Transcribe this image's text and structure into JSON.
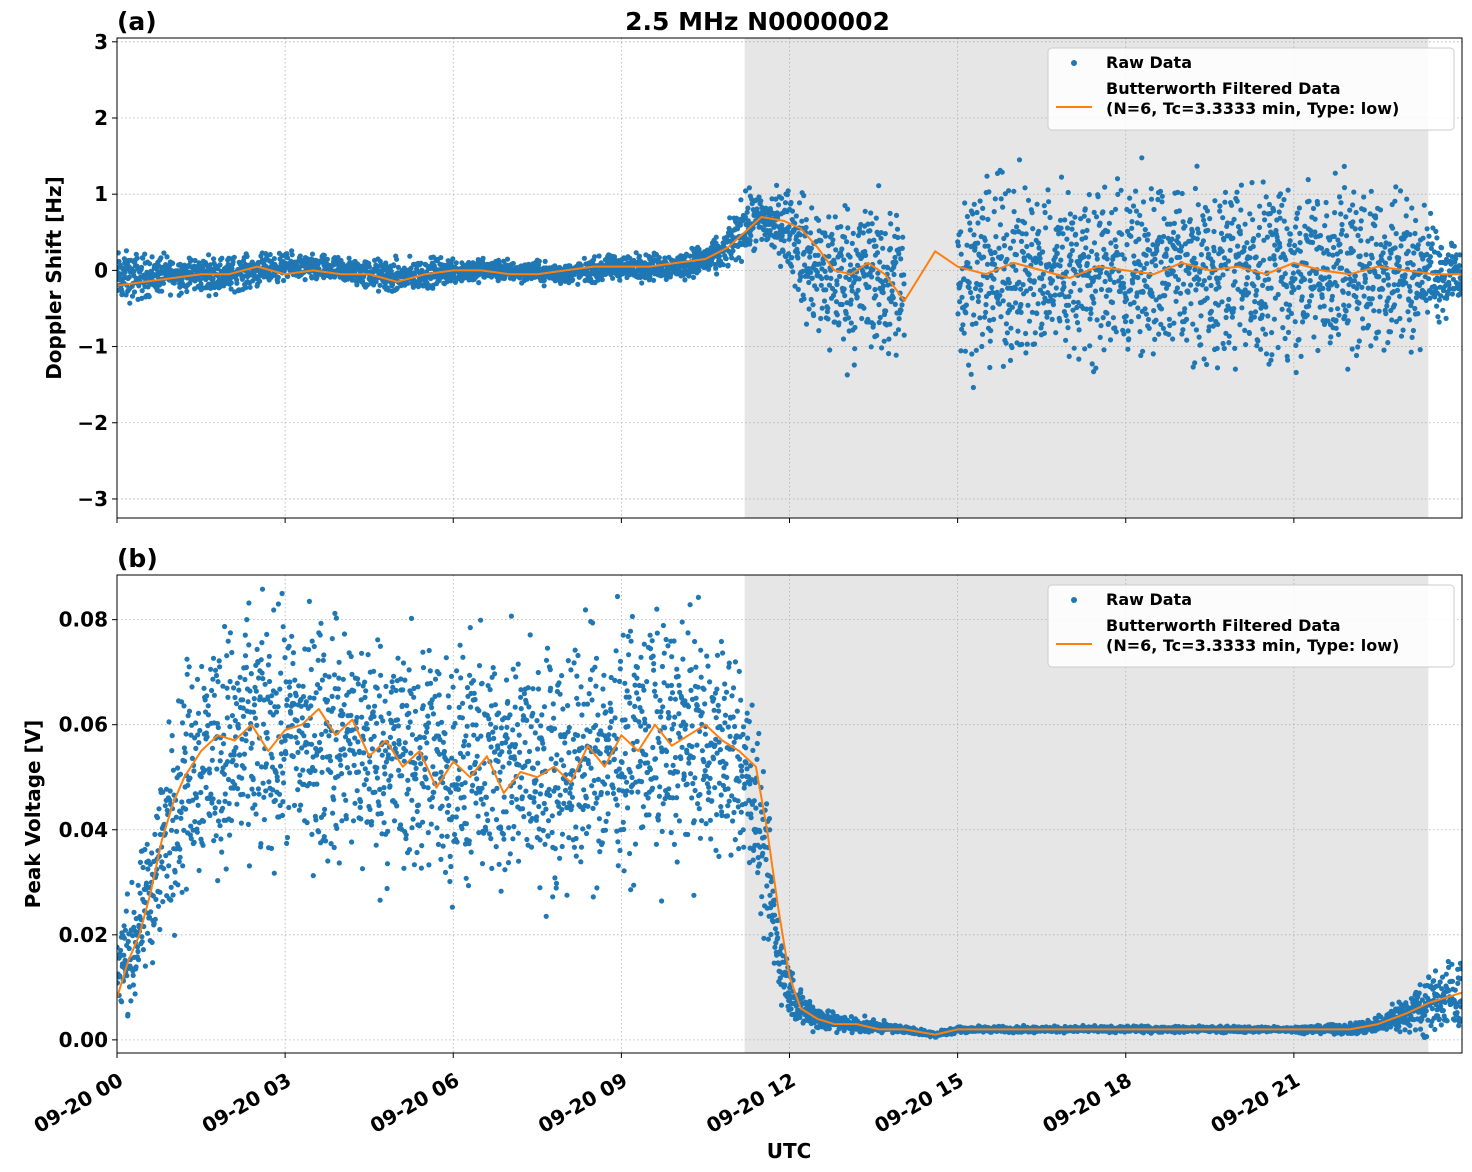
{
  "chart_data": [
    {
      "type": "scatter",
      "panel_label": "(a)",
      "title": "2.5 MHz N0000002",
      "xlabel": "",
      "ylabel": "Doppler Shift [Hz]",
      "xlim": [
        0,
        24
      ],
      "ylim": [
        -3.25,
        3.05
      ],
      "yticks": [
        -3,
        -2,
        -1,
        0,
        1,
        2,
        3
      ],
      "ytick_labels": [
        "−3",
        "−2",
        "−1",
        "0",
        "1",
        "2",
        "3"
      ],
      "xticks": [
        0,
        3,
        6,
        9,
        12,
        15,
        18,
        21
      ],
      "xtick_labels": [],
      "grid": true,
      "shaded_region": [
        11.2,
        23.4
      ],
      "legend_position": "top-right",
      "series": [
        {
          "name": "Raw Data",
          "kind": "points",
          "color": "#1f77b4",
          "band_x": [
            0,
            1,
            2,
            3,
            4,
            5,
            6,
            7,
            8,
            9,
            10,
            10.8,
            11.2,
            11.6,
            12,
            12.4,
            13,
            13.5,
            14.05,
            14.6,
            15,
            16,
            17,
            18,
            19,
            20,
            21,
            22,
            23,
            23.4,
            24
          ],
          "band_center": [
            -0.1,
            -0.05,
            -0.05,
            0.05,
            0.0,
            -0.1,
            0.0,
            0.0,
            -0.05,
            0.05,
            0.05,
            0.2,
            0.6,
            0.65,
            0.55,
            0.0,
            -0.1,
            -0.05,
            -0.3,
            null,
            0.0,
            0.0,
            0.0,
            0.0,
            0.0,
            0.0,
            0.0,
            0.0,
            0.0,
            0.0,
            -0.05
          ],
          "band_spread": [
            0.3,
            0.2,
            0.2,
            0.15,
            0.15,
            0.2,
            0.15,
            0.12,
            0.12,
            0.15,
            0.15,
            0.2,
            0.35,
            0.35,
            0.45,
            0.8,
            0.9,
            0.9,
            0.9,
            null,
            1.0,
            1.0,
            1.0,
            1.0,
            1.0,
            1.0,
            1.0,
            1.0,
            0.9,
            0.6,
            0.4
          ]
        },
        {
          "name": "Butterworth Filtered Data\n(N=6, Tc=3.3333 min, Type: low)",
          "kind": "line",
          "color": "#ff7f0e",
          "x": [
            0,
            0.5,
            1,
            1.5,
            2,
            2.5,
            3,
            3.5,
            4,
            4.5,
            5,
            5.5,
            6,
            6.5,
            7,
            7.5,
            8,
            8.5,
            9,
            9.5,
            10,
            10.5,
            10.9,
            11.2,
            11.5,
            11.9,
            12.2,
            12.5,
            12.8,
            13.1,
            13.4,
            13.7,
            14.05,
            14.6,
            15,
            15.5,
            16,
            16.5,
            17,
            17.5,
            18,
            18.5,
            19,
            19.5,
            20,
            20.5,
            21,
            21.5,
            22,
            22.5,
            23,
            23.5,
            24
          ],
          "y": [
            -0.2,
            -0.15,
            -0.1,
            -0.05,
            -0.05,
            0.05,
            -0.05,
            0.0,
            -0.05,
            -0.05,
            -0.15,
            -0.05,
            0.0,
            0.0,
            -0.05,
            -0.05,
            0.0,
            0.05,
            0.05,
            0.05,
            0.1,
            0.15,
            0.3,
            0.5,
            0.7,
            0.65,
            0.55,
            0.3,
            0.0,
            -0.05,
            0.1,
            -0.05,
            -0.4,
            0.25,
            0.05,
            -0.05,
            0.1,
            0.0,
            -0.1,
            0.05,
            0.0,
            -0.05,
            0.1,
            0.0,
            0.05,
            -0.05,
            0.1,
            0.0,
            -0.05,
            0.05,
            0.0,
            -0.05,
            -0.05
          ]
        }
      ]
    },
    {
      "type": "scatter",
      "panel_label": "(b)",
      "title": "",
      "xlabel": "UTC",
      "ylabel": "Peak Voltage [V]",
      "xlim": [
        0,
        24
      ],
      "ylim": [
        -0.0025,
        0.0885
      ],
      "yticks": [
        0.0,
        0.02,
        0.04,
        0.06,
        0.08
      ],
      "ytick_labels": [
        "0.00",
        "0.02",
        "0.04",
        "0.06",
        "0.08"
      ],
      "xticks": [
        0,
        3,
        6,
        9,
        12,
        15,
        18,
        21
      ],
      "xtick_labels": [
        "09-20 00",
        "09-20 03",
        "09-20 06",
        "09-20 09",
        "09-20 12",
        "09-20 15",
        "09-20 18",
        "09-20 21"
      ],
      "grid": true,
      "shaded_region": [
        11.2,
        23.4
      ],
      "legend_position": "top-right",
      "series": [
        {
          "name": "Raw Data",
          "kind": "points",
          "color": "#1f77b4",
          "band_x": [
            0,
            0.3,
            0.6,
            0.9,
            1.2,
            1.5,
            2,
            3,
            4,
            5,
            6,
            7,
            8,
            9,
            10,
            10.8,
            11.3,
            11.6,
            11.9,
            12.2,
            12.6,
            13,
            14.05,
            14.6,
            15,
            16,
            17,
            18,
            19,
            20,
            21,
            22,
            22.5,
            23,
            23.4,
            24
          ],
          "band_center": [
            0.012,
            0.018,
            0.028,
            0.04,
            0.05,
            0.055,
            0.056,
            0.058,
            0.057,
            0.054,
            0.052,
            0.052,
            0.052,
            0.056,
            0.058,
            0.055,
            0.05,
            0.03,
            0.012,
            0.006,
            0.004,
            0.003,
            0.002,
            0.001,
            0.002,
            0.002,
            0.002,
            0.002,
            0.002,
            0.002,
            0.002,
            0.002,
            0.003,
            0.005,
            0.007,
            0.009
          ],
          "band_spread": [
            0.008,
            0.01,
            0.012,
            0.016,
            0.018,
            0.02,
            0.02,
            0.02,
            0.02,
            0.02,
            0.02,
            0.02,
            0.02,
            0.02,
            0.02,
            0.018,
            0.015,
            0.012,
            0.006,
            0.003,
            0.002,
            0.0015,
            0.0005,
            0.0005,
            0.0005,
            0.0005,
            0.0005,
            0.0005,
            0.0005,
            0.0005,
            0.0005,
            0.0008,
            0.0015,
            0.003,
            0.005,
            0.006
          ]
        },
        {
          "name": "Butterworth Filtered Data\n(N=6, Tc=3.3333 min, Type: low)",
          "kind": "line",
          "color": "#ff7f0e",
          "x": [
            0,
            0.2,
            0.4,
            0.6,
            0.8,
            1.0,
            1.2,
            1.5,
            1.8,
            2.1,
            2.4,
            2.7,
            3.0,
            3.3,
            3.6,
            3.9,
            4.2,
            4.5,
            4.8,
            5.1,
            5.4,
            5.7,
            6.0,
            6.3,
            6.6,
            6.9,
            7.2,
            7.5,
            7.8,
            8.1,
            8.4,
            8.7,
            9.0,
            9.3,
            9.6,
            9.9,
            10.2,
            10.5,
            10.8,
            11.1,
            11.4,
            11.6,
            11.8,
            12.0,
            12.2,
            12.5,
            12.8,
            13.2,
            13.6,
            14.05,
            14.6,
            15,
            16,
            17,
            18,
            19,
            20,
            21,
            22,
            22.5,
            23,
            23.4,
            24
          ],
          "y": [
            0.008,
            0.015,
            0.02,
            0.028,
            0.038,
            0.045,
            0.05,
            0.055,
            0.058,
            0.057,
            0.06,
            0.055,
            0.059,
            0.06,
            0.063,
            0.058,
            0.061,
            0.054,
            0.057,
            0.052,
            0.055,
            0.048,
            0.053,
            0.05,
            0.054,
            0.047,
            0.051,
            0.05,
            0.052,
            0.049,
            0.056,
            0.052,
            0.058,
            0.055,
            0.06,
            0.056,
            0.058,
            0.06,
            0.057,
            0.055,
            0.052,
            0.04,
            0.025,
            0.012,
            0.006,
            0.004,
            0.003,
            0.003,
            0.002,
            0.002,
            0.001,
            0.002,
            0.002,
            0.002,
            0.002,
            0.002,
            0.002,
            0.002,
            0.002,
            0.003,
            0.005,
            0.007,
            0.009
          ]
        }
      ]
    }
  ]
}
